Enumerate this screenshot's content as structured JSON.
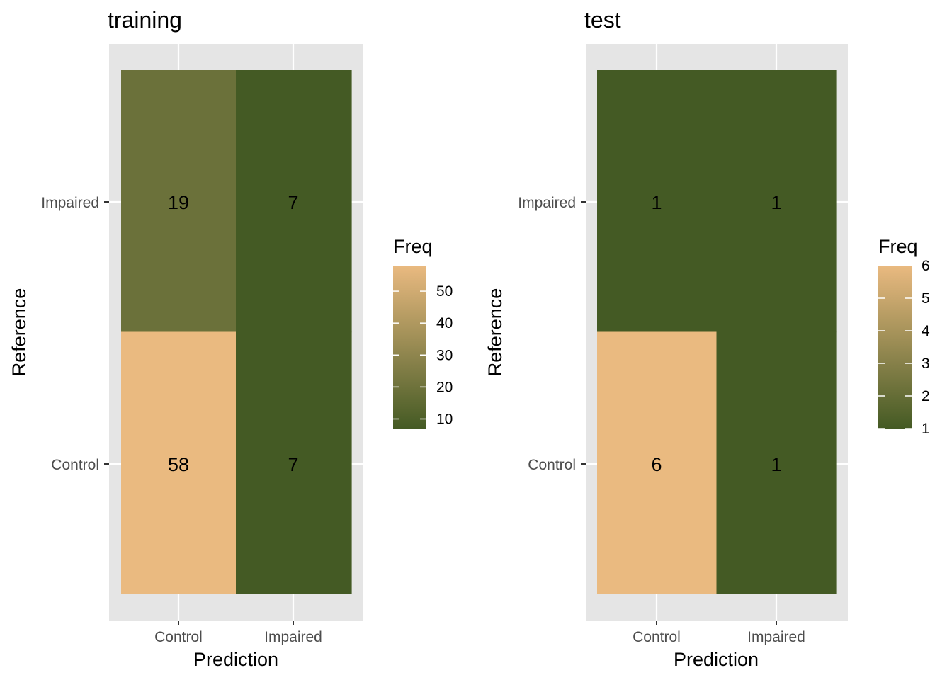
{
  "colors": {
    "low": "#445a24",
    "high": "#eaba80",
    "panel_bg": "#e5e5e5",
    "grid": "#ffffff",
    "tick": "#333333"
  },
  "chart_data": [
    {
      "type": "heatmap",
      "title": "training",
      "xlabel": "Prediction",
      "ylabel": "Reference",
      "x_categories": [
        "Control",
        "Impaired"
      ],
      "y_categories": [
        "Control",
        "Impaired"
      ],
      "cells": [
        {
          "x": "Control",
          "y": "Impaired",
          "value": 19
        },
        {
          "x": "Impaired",
          "y": "Impaired",
          "value": 7
        },
        {
          "x": "Control",
          "y": "Control",
          "value": 58
        },
        {
          "x": "Impaired",
          "y": "Control",
          "value": 7
        }
      ],
      "legend": {
        "title": "Freq",
        "ticks": [
          10,
          20,
          30,
          40,
          50
        ],
        "range": [
          7,
          58
        ],
        "placement": "right"
      }
    },
    {
      "type": "heatmap",
      "title": "test",
      "xlabel": "Prediction",
      "ylabel": "Reference",
      "x_categories": [
        "Control",
        "Impaired"
      ],
      "y_categories": [
        "Control",
        "Impaired"
      ],
      "cells": [
        {
          "x": "Control",
          "y": "Impaired",
          "value": 1
        },
        {
          "x": "Impaired",
          "y": "Impaired",
          "value": 1
        },
        {
          "x": "Control",
          "y": "Control",
          "value": 6
        },
        {
          "x": "Impaired",
          "y": "Control",
          "value": 1
        }
      ],
      "legend": {
        "title": "Freq",
        "ticks": [
          1,
          2,
          3,
          4,
          5,
          6
        ],
        "range": [
          1,
          6
        ],
        "placement": "right"
      }
    }
  ]
}
